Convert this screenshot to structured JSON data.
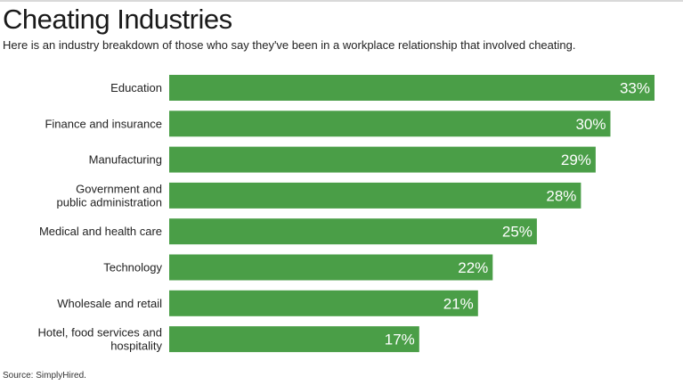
{
  "header": {
    "title": "Cheating Industries",
    "subtitle": "Here is an industry breakdown of those who say they've been in a workplace relationship that involved cheating."
  },
  "footer": {
    "source": "Source: SimplyHired."
  },
  "colors": {
    "bar": "#4a9e47",
    "label": "#222222",
    "value": "#ffffff"
  },
  "chart_data": {
    "type": "bar",
    "orientation": "horizontal",
    "title": "Cheating Industries",
    "xlabel": "",
    "ylabel": "",
    "unit": "%",
    "xlim": [
      0,
      33
    ],
    "grid": false,
    "categories": [
      [
        "Education"
      ],
      [
        "Finance and insurance"
      ],
      [
        "Manufacturing"
      ],
      [
        "Government and",
        "public administration"
      ],
      [
        "Medical and health care"
      ],
      [
        "Technology"
      ],
      [
        "Wholesale and retail"
      ],
      [
        "Hotel, food services and",
        "hospitality"
      ]
    ],
    "values": [
      33,
      30,
      29,
      28,
      25,
      22,
      21,
      17
    ],
    "value_labels": [
      "33%",
      "30%",
      "29%",
      "28%",
      "25%",
      "22%",
      "21%",
      "17%"
    ]
  }
}
